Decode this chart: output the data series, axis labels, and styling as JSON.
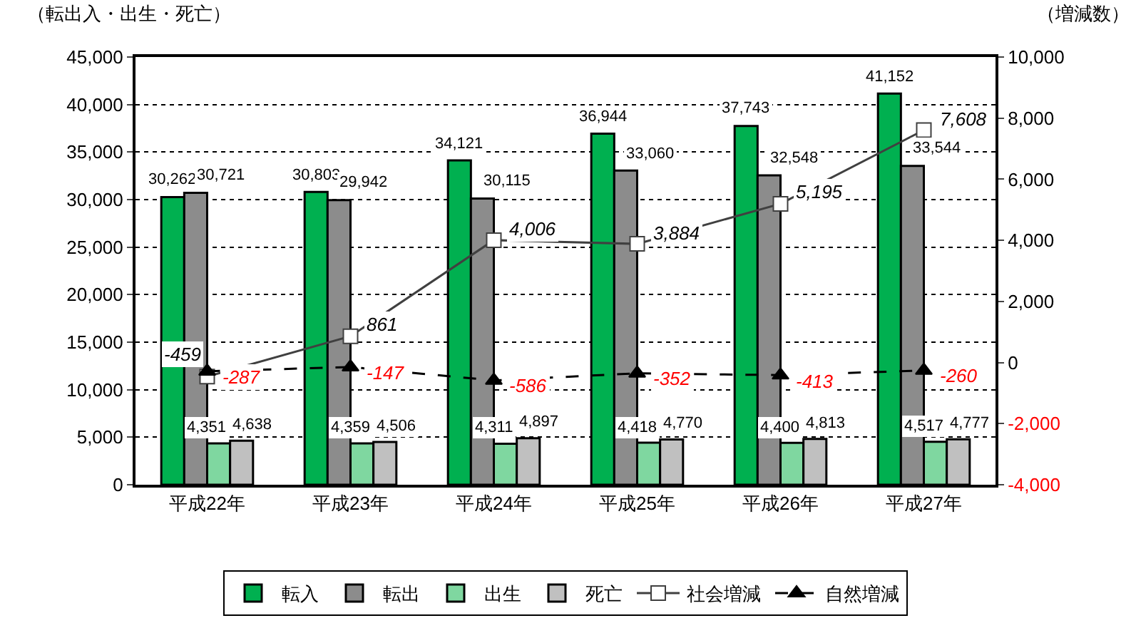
{
  "chart_data": {
    "type": "bar",
    "ylabel": "（転出入・出生・死亡）",
    "y2label": "（増減数）",
    "categories": [
      "平成22年",
      "平成23年",
      "平成24年",
      "平成25年",
      "平成26年",
      "平成27年"
    ],
    "series": [
      {
        "name": "転入",
        "color": "#00b050",
        "values": [
          30262,
          30803,
          34121,
          36944,
          37743,
          41152
        ],
        "value_labels": [
          "30,262",
          "30,803",
          "34,121",
          "36,944",
          "37,743",
          "41,152"
        ]
      },
      {
        "name": "転出",
        "color": "#8c8c8c",
        "values": [
          30721,
          29942,
          30115,
          33060,
          32548,
          33544
        ],
        "value_labels": [
          "30,721",
          "29,942",
          "30,115",
          "33,060",
          "32,548",
          "33,544"
        ]
      },
      {
        "name": "出生",
        "color": "#7fd7a0",
        "values": [
          4351,
          4359,
          4311,
          4418,
          4400,
          4517
        ],
        "value_labels": [
          "4,351",
          "4,359",
          "4,311",
          "4,418",
          "4,400",
          "4,517"
        ]
      },
      {
        "name": "死亡",
        "color": "#c0c0c0",
        "values": [
          4638,
          4506,
          4897,
          4770,
          4813,
          4777
        ],
        "value_labels": [
          "4,638",
          "4,506",
          "4,897",
          "4,770",
          "4,813",
          "4,777"
        ]
      },
      {
        "name": "社会増減",
        "type": "line",
        "axis": "y2",
        "color": "#404040",
        "marker": "square",
        "line_style": "solid",
        "values": [
          -459,
          861,
          4006,
          3884,
          5195,
          7608
        ],
        "value_labels": [
          "-459",
          "861",
          "4,006",
          "3,884",
          "5,195",
          "7,608"
        ]
      },
      {
        "name": "自然増減",
        "type": "line",
        "axis": "y2",
        "color": "#000000",
        "marker": "triangle",
        "line_style": "dashed",
        "values": [
          -287,
          -147,
          -586,
          -352,
          -413,
          -260
        ],
        "value_labels": [
          "-287",
          "-147",
          "-586",
          "-352",
          "-413",
          "-260"
        ]
      }
    ],
    "ylim": [
      0,
      45000
    ],
    "yticks": [
      0,
      {
        "value": 5000,
        "label": "5,000"
      },
      {
        "value": 10000,
        "label": "10,000"
      },
      {
        "value": 15000,
        "label": "15,000"
      },
      {
        "value": 20000,
        "label": "20,000"
      },
      {
        "value": 25000,
        "label": "25,000"
      },
      {
        "value": 30000,
        "label": "30,000"
      },
      {
        "value": 35000,
        "label": "35,000"
      },
      {
        "value": 40000,
        "label": "40,000"
      },
      {
        "value": 45000,
        "label": "45,000"
      }
    ],
    "y2lim": [
      -4000,
      10000
    ],
    "y2ticks": [
      {
        "value": -4000,
        "label": "-4,000"
      },
      {
        "value": -2000,
        "label": "-2,000"
      },
      0,
      {
        "value": 2000,
        "label": "2,000"
      },
      {
        "value": 4000,
        "label": "4,000"
      },
      {
        "value": 6000,
        "label": "6,000"
      },
      {
        "value": 8000,
        "label": "8,000"
      },
      {
        "value": 10000,
        "label": "10,000"
      }
    ],
    "grid": "y",
    "legend": "bottom"
  }
}
